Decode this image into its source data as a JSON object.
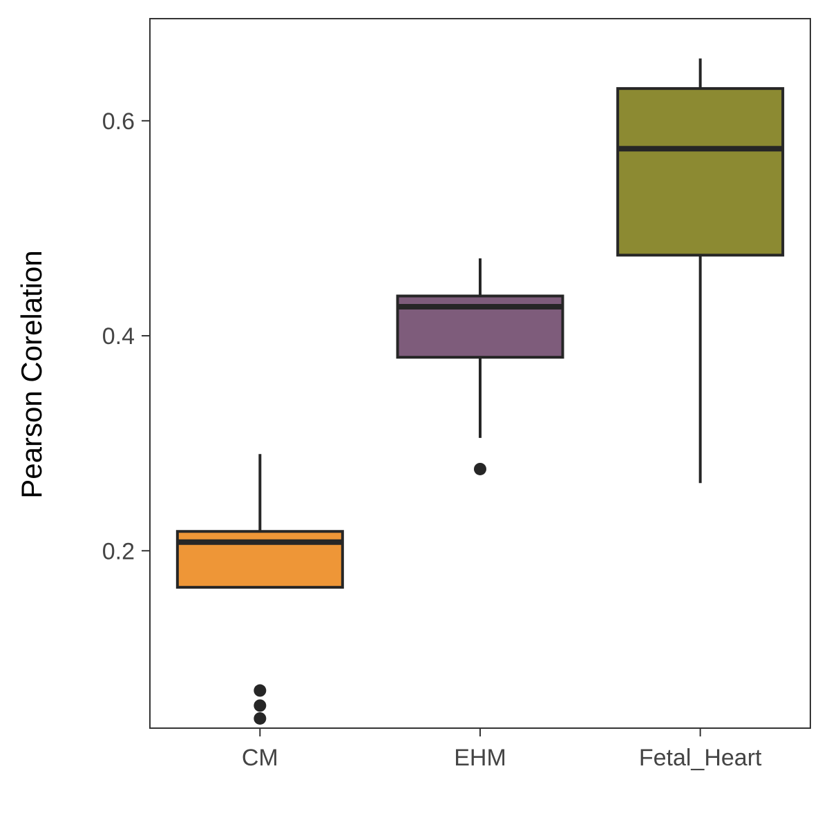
{
  "chart_data": {
    "type": "boxplot",
    "ylabel": "Pearson Corelation",
    "xlabel": "",
    "ylim": [
      0.035,
      0.695
    ],
    "yticks": [
      0.2,
      0.4,
      0.6
    ],
    "ytick_labels": [
      "0.2",
      "0.4",
      "0.6"
    ],
    "grid": false,
    "legend": "none",
    "categories": [
      "CM",
      "EHM",
      "Fetal_Heart"
    ],
    "boxes": [
      {
        "category": "CM",
        "color": "#EE9637",
        "whisker_low": 0.166,
        "q1": 0.166,
        "median": 0.208,
        "q3": 0.218,
        "whisker_high": 0.29,
        "outliers": [
          0.07,
          0.056,
          0.044
        ]
      },
      {
        "category": "EHM",
        "color": "#7E5C7B",
        "whisker_low": 0.305,
        "q1": 0.38,
        "median": 0.427,
        "q3": 0.437,
        "whisker_high": 0.472,
        "outliers": [
          0.276
        ]
      },
      {
        "category": "Fetal_Heart",
        "color": "#8C8A32",
        "whisker_low": 0.263,
        "q1": 0.475,
        "median": 0.574,
        "q3": 0.63,
        "whisker_high": 0.658,
        "outliers": []
      }
    ]
  }
}
